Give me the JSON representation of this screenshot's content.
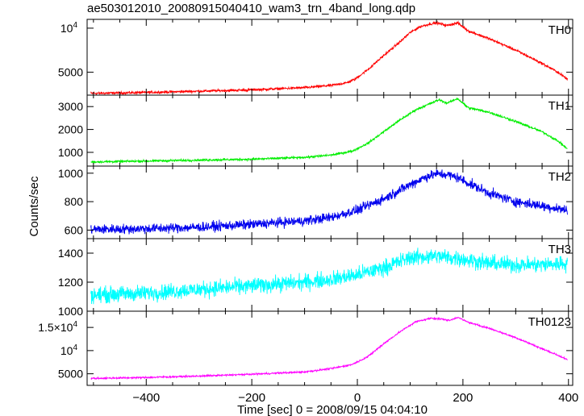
{
  "title": "ae503012010_20080915040410_wam3_trn_4band_long.qdp",
  "chart_data": {
    "type": "line",
    "title": "ae503012010_20080915040410_wam3_trn_4band_long.qdp",
    "xlabel": "Time [sec] 0 = 2008/09/15 04:04:10",
    "ylabel": "Counts/sec",
    "xlim": [
      -512,
      408
    ],
    "x_ticks": [
      -400,
      -200,
      0,
      200,
      400
    ],
    "x_tick_labels": [
      "−400",
      "−200",
      "0",
      "200",
      "400"
    ],
    "grid": false,
    "panels": [
      {
        "name": "TH0",
        "color": "#ff0000",
        "ylim": [
          2400,
          11000
        ],
        "yticks": [
          {
            "value": 5000,
            "label": "5000"
          },
          {
            "value": 10000,
            "label": "10",
            "exp": "4"
          }
        ],
        "noise": 120,
        "points": [
          [
            -505,
            2600
          ],
          [
            -400,
            2700
          ],
          [
            -300,
            2850
          ],
          [
            -200,
            3000
          ],
          [
            -100,
            3250
          ],
          [
            -50,
            3500
          ],
          [
            -20,
            3800
          ],
          [
            -5,
            4200
          ],
          [
            20,
            5300
          ],
          [
            50,
            6900
          ],
          [
            80,
            8400
          ],
          [
            100,
            9500
          ],
          [
            120,
            10200
          ],
          [
            140,
            10500
          ],
          [
            150,
            10600
          ],
          [
            170,
            10300
          ],
          [
            190,
            10600
          ],
          [
            210,
            9700
          ],
          [
            250,
            8800
          ],
          [
            300,
            7500
          ],
          [
            350,
            6000
          ],
          [
            380,
            5000
          ],
          [
            398,
            4200
          ]
        ]
      },
      {
        "name": "TH1",
        "color": "#00ee00",
        "ylim": [
          400,
          3500
        ],
        "yticks": [
          {
            "value": 1000,
            "label": "1000"
          },
          {
            "value": 2000,
            "label": "2000"
          },
          {
            "value": 3000,
            "label": "3000"
          }
        ],
        "noise": 40,
        "points": [
          [
            -505,
            580
          ],
          [
            -400,
            620
          ],
          [
            -300,
            660
          ],
          [
            -200,
            700
          ],
          [
            -100,
            780
          ],
          [
            -50,
            880
          ],
          [
            -10,
            1050
          ],
          [
            20,
            1400
          ],
          [
            50,
            1900
          ],
          [
            80,
            2400
          ],
          [
            110,
            2850
          ],
          [
            140,
            3150
          ],
          [
            155,
            3300
          ],
          [
            170,
            3150
          ],
          [
            190,
            3350
          ],
          [
            210,
            2950
          ],
          [
            250,
            2750
          ],
          [
            300,
            2350
          ],
          [
            350,
            1900
          ],
          [
            380,
            1500
          ],
          [
            398,
            1150
          ]
        ]
      },
      {
        "name": "TH2",
        "color": "#0000ee",
        "ylim": [
          540,
          1050
        ],
        "yticks": [
          {
            "value": 600,
            "label": "600"
          },
          {
            "value": 800,
            "label": "800"
          },
          {
            "value": 1000,
            "label": "1000"
          }
        ],
        "noise": 28,
        "points": [
          [
            -505,
            605
          ],
          [
            -400,
            610
          ],
          [
            -300,
            620
          ],
          [
            -200,
            640
          ],
          [
            -100,
            665
          ],
          [
            -50,
            690
          ],
          [
            0,
            740
          ],
          [
            50,
            820
          ],
          [
            100,
            920
          ],
          [
            130,
            975
          ],
          [
            150,
            995
          ],
          [
            170,
            990
          ],
          [
            190,
            970
          ],
          [
            210,
            930
          ],
          [
            250,
            860
          ],
          [
            300,
            800
          ],
          [
            350,
            770
          ],
          [
            398,
            740
          ]
        ]
      },
      {
        "name": "TH3",
        "color": "#00ffff",
        "ylim": [
          1000,
          1500
        ],
        "yticks": [
          {
            "value": 1000,
            "label": "1000"
          },
          {
            "value": 1200,
            "label": "1200"
          },
          {
            "value": 1400,
            "label": "1400"
          }
        ],
        "noise": 45,
        "points": [
          [
            -505,
            1110
          ],
          [
            -400,
            1125
          ],
          [
            -300,
            1150
          ],
          [
            -200,
            1175
          ],
          [
            -100,
            1200
          ],
          [
            -50,
            1220
          ],
          [
            0,
            1250
          ],
          [
            50,
            1300
          ],
          [
            100,
            1370
          ],
          [
            150,
            1380
          ],
          [
            200,
            1360
          ],
          [
            250,
            1330
          ],
          [
            300,
            1320
          ],
          [
            350,
            1320
          ],
          [
            398,
            1330
          ]
        ]
      },
      {
        "name": "TH0123",
        "color": "#ff00ff",
        "ylim": [
          2500,
          18500
        ],
        "yticks": [
          {
            "value": 5000,
            "label": "5000"
          },
          {
            "value": 10000,
            "label": "10",
            "exp": "4"
          },
          {
            "value": 15000,
            "label": "1.5×10",
            "exp": "4"
          }
        ],
        "noise": 150,
        "points": [
          [
            -505,
            4000
          ],
          [
            -400,
            4200
          ],
          [
            -300,
            4500
          ],
          [
            -200,
            4900
          ],
          [
            -100,
            5400
          ],
          [
            -50,
            6100
          ],
          [
            -10,
            7000
          ],
          [
            20,
            8700
          ],
          [
            50,
            11500
          ],
          [
            80,
            14000
          ],
          [
            110,
            16200
          ],
          [
            140,
            17000
          ],
          [
            160,
            16800
          ],
          [
            175,
            16500
          ],
          [
            190,
            17200
          ],
          [
            210,
            16100
          ],
          [
            250,
            14800
          ],
          [
            300,
            12800
          ],
          [
            350,
            10400
          ],
          [
            380,
            9000
          ],
          [
            398,
            8000
          ]
        ]
      }
    ]
  }
}
